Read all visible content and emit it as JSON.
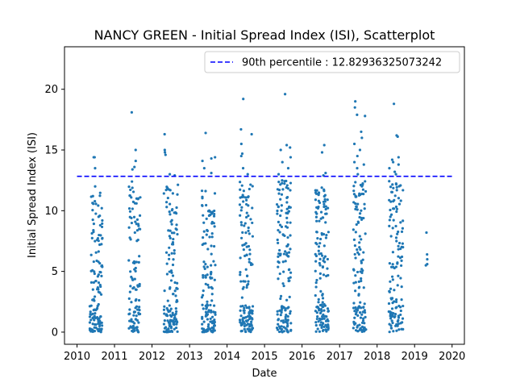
{
  "chart_data": {
    "type": "scatter",
    "title": "NANCY GREEN - Initial Spread Index (ISI), Scatterplot",
    "xlabel": "Date",
    "ylabel": "Initial Spread Index (ISI)",
    "xlim": [
      "2009-09-01",
      "2020-04-30"
    ],
    "ylim": [
      -1,
      23.5
    ],
    "xticks": [
      "2010",
      "2011",
      "2012",
      "2013",
      "2014",
      "2015",
      "2016",
      "2017",
      "2018",
      "2019",
      "2020"
    ],
    "yticks": [
      0,
      5,
      10,
      15,
      20
    ],
    "grid": false,
    "legend_position": "top-right",
    "colors": {
      "points": "#1f77b4",
      "reference_line": "#0000ff"
    },
    "reference_line": {
      "label": "90th percentile : 12.82936325073242",
      "y": 12.82936325073242,
      "x_start": "2010-01-01",
      "x_end": "2020-01-01",
      "style": "dashed"
    },
    "series": [
      {
        "seasons": [
          {
            "year": 2010,
            "start": "2010-05-05",
            "end": "2010-09-05",
            "n": 130,
            "low_share": 0.35,
            "mid_max": 11.5,
            "extra": [
              14.4,
              14.4,
              13.5,
              12.0
            ]
          },
          {
            "year": 2011,
            "start": "2011-05-20",
            "end": "2011-09-10",
            "n": 110,
            "low_share": 0.3,
            "mid_max": 12.0,
            "extra": [
              18.1,
              15.0,
              14.1,
              13.6,
              13.4,
              12.4
            ]
          },
          {
            "year": 2012,
            "start": "2012-04-25",
            "end": "2012-09-10",
            "n": 140,
            "low_share": 0.3,
            "mid_max": 12.5,
            "extra": [
              16.3,
              15.0,
              14.8,
              14.6,
              13.0,
              12.9
            ]
          },
          {
            "year": 2013,
            "start": "2013-05-01",
            "end": "2013-09-10",
            "n": 140,
            "low_share": 0.3,
            "mid_max": 12.0,
            "extra": [
              16.4,
              14.4,
              14.3,
              14.1,
              13.5,
              13.1
            ]
          },
          {
            "year": 2014,
            "start": "2014-05-05",
            "end": "2014-09-10",
            "n": 140,
            "low_share": 0.3,
            "mid_max": 12.5,
            "extra": [
              19.2,
              16.7,
              16.3,
              15.5,
              14.7,
              14.5,
              13.5,
              13.0
            ]
          },
          {
            "year": 2015,
            "start": "2015-05-01",
            "end": "2015-09-15",
            "n": 150,
            "low_share": 0.25,
            "mid_max": 12.5,
            "extra": [
              19.6,
              15.4,
              15.2,
              15.0,
              14.4,
              14.0,
              13.5,
              13.0
            ]
          },
          {
            "year": 2016,
            "start": "2016-05-10",
            "end": "2016-09-15",
            "n": 150,
            "low_share": 0.3,
            "mid_max": 12.0,
            "extra": [
              15.4,
              14.8,
              13.1,
              12.9
            ]
          },
          {
            "year": 2017,
            "start": "2017-05-15",
            "end": "2017-09-15",
            "n": 130,
            "low_share": 0.25,
            "mid_max": 12.5,
            "extra": [
              19.0,
              18.5,
              17.9,
              17.8,
              16.5,
              16.0,
              15.5,
              15.0,
              14.5,
              14.0,
              13.8,
              13.5,
              13.0
            ]
          },
          {
            "year": 2018,
            "start": "2018-04-25",
            "end": "2018-09-10",
            "n": 130,
            "low_share": 0.25,
            "mid_max": 12.5,
            "extra": [
              18.8,
              16.2,
              16.1,
              14.4,
              14.2,
              14.0,
              13.8,
              13.5,
              13.2,
              13.0
            ]
          },
          {
            "year": 2019,
            "start": "2019-04-20",
            "end": "2019-05-05",
            "n": 0,
            "low_share": 0,
            "mid_max": 0,
            "extra": [
              8.2,
              6.4,
              6.0,
              5.6,
              5.5
            ]
          }
        ]
      }
    ]
  }
}
